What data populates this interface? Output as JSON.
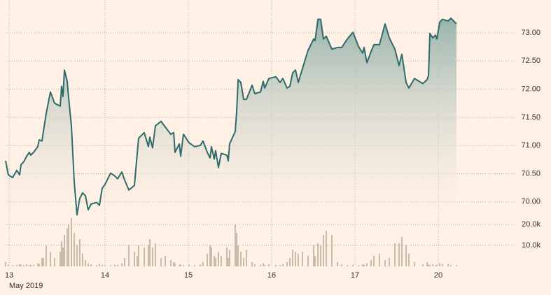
{
  "chart_data": {
    "type": "line",
    "subtitle": "May 2019",
    "x": [
      -0.193,
      -0.16,
      -0.109,
      -0.059,
      -0.025,
      -0.008,
      0.025,
      0.059,
      0.092,
      0.109,
      0.143,
      0.193,
      0.21,
      0.244,
      0.261,
      0.294,
      0.345,
      0.395,
      0.462,
      0.479,
      0.496,
      0.513,
      0.546,
      0.563,
      0.597,
      0.63,
      0.664,
      0.697,
      0.731,
      0.765,
      0.798,
      0.832,
      0.899,
      0.933,
      0.966,
      1.0,
      1.067,
      1.118,
      1.151,
      1.202,
      1.235,
      1.286,
      1.353,
      1.387,
      1.403,
      1.471,
      1.521,
      1.538,
      1.571,
      1.605,
      1.672,
      1.723,
      1.79,
      1.824,
      1.84,
      1.891,
      1.908,
      1.941,
      2.008,
      2.076,
      2.143,
      2.176,
      2.227,
      2.261,
      2.277,
      2.311,
      2.328,
      2.361,
      2.395,
      2.462,
      2.479,
      2.496,
      2.563,
      2.58,
      2.597,
      2.63,
      2.664,
      2.697,
      2.765,
      2.798,
      2.866,
      2.899,
      2.916,
      2.966,
      3.05,
      3.101,
      3.134,
      3.185,
      3.218,
      3.252,
      3.286,
      3.319,
      3.37,
      3.437,
      3.504,
      3.521,
      3.555,
      3.588,
      3.622,
      3.655,
      3.723,
      3.79,
      3.84,
      3.908,
      3.975,
      4.042,
      4.092,
      4.109,
      4.143,
      4.193,
      4.227,
      4.294,
      4.361,
      4.412,
      4.479,
      4.529,
      4.563,
      4.613,
      4.647,
      4.714,
      4.815,
      4.866,
      4.882,
      4.899,
      4.933,
      4.966,
      4.983,
      5.017,
      5.05,
      5.118,
      5.151,
      5.218
    ],
    "series": [
      {
        "color": "#2e6b6b",
        "values": [
          70.73,
          70.48,
          70.43,
          70.56,
          70.48,
          70.66,
          70.71,
          70.81,
          70.88,
          70.83,
          70.88,
          70.98,
          71.1,
          71.08,
          71.25,
          71.57,
          71.95,
          71.75,
          71.7,
          72.05,
          71.87,
          72.34,
          72.14,
          71.85,
          71.35,
          70.36,
          69.77,
          70.06,
          70.16,
          70.11,
          69.86,
          69.96,
          69.99,
          69.94,
          70.24,
          70.31,
          70.51,
          70.46,
          70.41,
          70.53,
          70.39,
          70.21,
          70.29,
          70.86,
          71.13,
          71.23,
          70.98,
          71.15,
          70.96,
          71.35,
          71.43,
          71.33,
          71.2,
          71.23,
          70.88,
          71.03,
          70.81,
          71.2,
          71.05,
          70.98,
          71.0,
          71.08,
          70.88,
          70.78,
          70.98,
          70.76,
          70.91,
          70.61,
          70.86,
          70.83,
          70.73,
          71.03,
          71.25,
          71.6,
          72.17,
          72.12,
          71.82,
          71.82,
          72.07,
          71.92,
          71.95,
          72.14,
          72.02,
          72.19,
          72.22,
          72.12,
          72.19,
          72.02,
          72.05,
          72.29,
          72.34,
          72.12,
          72.37,
          72.69,
          72.89,
          72.86,
          73.24,
          73.24,
          72.89,
          72.94,
          72.71,
          72.74,
          72.74,
          72.89,
          73.01,
          72.76,
          72.64,
          72.74,
          72.47,
          72.67,
          72.79,
          72.79,
          73.16,
          72.91,
          72.71,
          72.42,
          72.62,
          72.12,
          72.02,
          72.19,
          72.1,
          72.17,
          72.24,
          72.99,
          72.91,
          72.96,
          72.89,
          73.19,
          73.24,
          73.21,
          73.26,
          73.16
        ]
      },
      {
        "type": "bar",
        "axis": "y2",
        "color": "#c9bba9",
        "values": [
          2000,
          800,
          500,
          600,
          1000,
          800,
          600,
          1000,
          500,
          800,
          700,
          1500,
          1200,
          4000,
          4000,
          10000,
          7000,
          4000,
          7000,
          12000,
          9000,
          15000,
          18000,
          20000,
          23000,
          16000,
          10000,
          13000,
          6000,
          3000,
          1500,
          1000,
          600,
          1200,
          800,
          500,
          600,
          800,
          700,
          1500,
          4000,
          10000,
          7000,
          5000,
          10000,
          9000,
          10000,
          13000,
          9000,
          11000,
          4000,
          5000,
          3000,
          2000,
          1500,
          800,
          1000,
          600,
          800,
          500,
          1000,
          2000,
          6000,
          10000,
          9000,
          5000,
          4000,
          7000,
          5000,
          9000,
          4000,
          8000,
          20000,
          16000,
          10000,
          7000,
          4000,
          8000,
          2000,
          1000,
          800,
          1500,
          600,
          1000,
          800,
          600,
          1200,
          2000,
          4000,
          8000,
          7000,
          6000,
          7000,
          5000,
          10000,
          5000,
          11000,
          10000,
          15000,
          17000,
          15000,
          2000,
          1000,
          600,
          800,
          500,
          1000,
          800,
          1500,
          3000,
          5000,
          6000,
          3000,
          4000,
          11000,
          11000,
          14000,
          10000,
          6000,
          2000,
          1000,
          2000,
          800,
          600,
          1000,
          500,
          800,
          1500,
          1000,
          1200,
          600,
          500
        ]
      }
    ],
    "xlim": [
      -0.193,
      5.218
    ],
    "xticks": [
      {
        "value": -0.15,
        "label": "13"
      },
      {
        "value": 1,
        "label": "14"
      },
      {
        "value": 2,
        "label": "15"
      },
      {
        "value": 3,
        "label": "16"
      },
      {
        "value": 4,
        "label": "17"
      },
      {
        "value": 5,
        "label": "20"
      }
    ],
    "ylim": [
      69.7,
      73.5
    ],
    "yticks": [
      {
        "value": 70,
        "label": "70.00"
      },
      {
        "value": 70.5,
        "label": "70.50"
      },
      {
        "value": 71,
        "label": "71.00"
      },
      {
        "value": 71.5,
        "label": "71.50"
      },
      {
        "value": 72,
        "label": "72.00"
      },
      {
        "value": 72.5,
        "label": "72.50"
      },
      {
        "value": 73,
        "label": "73.00"
      }
    ],
    "y2lim": [
      0,
      25000
    ],
    "y2ticks": [
      {
        "value": 10000,
        "label": "10.0k"
      },
      {
        "value": 20000,
        "label": "20.0k"
      }
    ],
    "grid": true
  }
}
